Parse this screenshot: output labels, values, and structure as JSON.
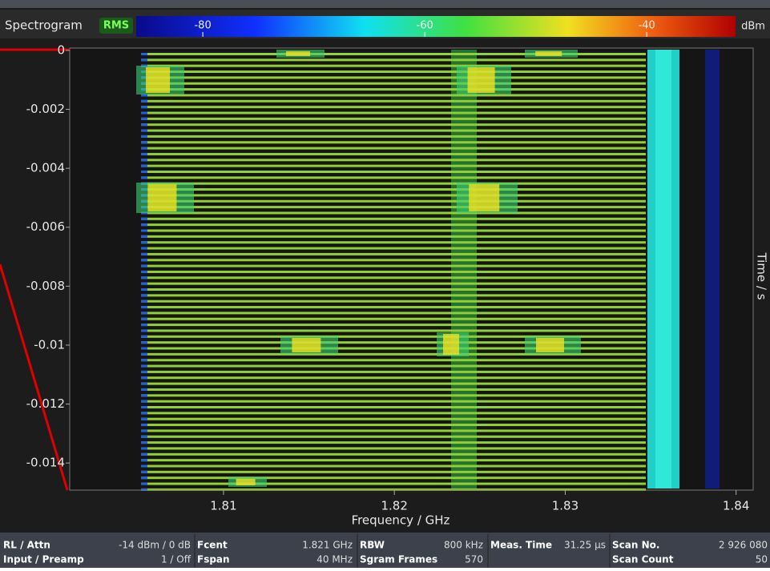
{
  "header": {
    "title": "Spectrogram",
    "detector": "RMS",
    "unit": "dBm",
    "colorbar": {
      "lim": [
        -86,
        -32
      ],
      "ticks": [
        -80,
        -60,
        -40
      ]
    }
  },
  "plot": {
    "xlabel": "Frequency / GHz",
    "ylabel": "Time / s",
    "xlim": [
      1.801,
      1.841
    ],
    "xticks": [
      1.81,
      1.82,
      1.83,
      1.84
    ],
    "ylim": [
      -0.01492,
      8e-05
    ],
    "yticks": [
      0,
      -0.002,
      -0.004,
      -0.006,
      -0.008,
      -0.01,
      -0.012,
      -0.014
    ]
  },
  "status": {
    "columns": [
      {
        "items": [
          {
            "label": "RL / Attn",
            "value": "-14 dBm / 0 dB"
          },
          {
            "label": "Input / Preamp",
            "value": "1 / Off"
          }
        ]
      },
      {
        "items": [
          {
            "label": "Fcent",
            "value": "1.821 GHz"
          },
          {
            "label": "Fspan",
            "value": "40 MHz"
          }
        ]
      },
      {
        "items": [
          {
            "label": "RBW",
            "value": "800 kHz"
          },
          {
            "label": "Sgram Frames",
            "value": "570"
          }
        ]
      },
      {
        "items": [
          {
            "label": "Meas. Time",
            "value": "31.25 µs"
          }
        ]
      },
      {
        "items": [
          {
            "label": "Scan No.",
            "value": "2 926 080"
          },
          {
            "label": "Scan Count",
            "value": "50"
          }
        ]
      }
    ]
  }
}
